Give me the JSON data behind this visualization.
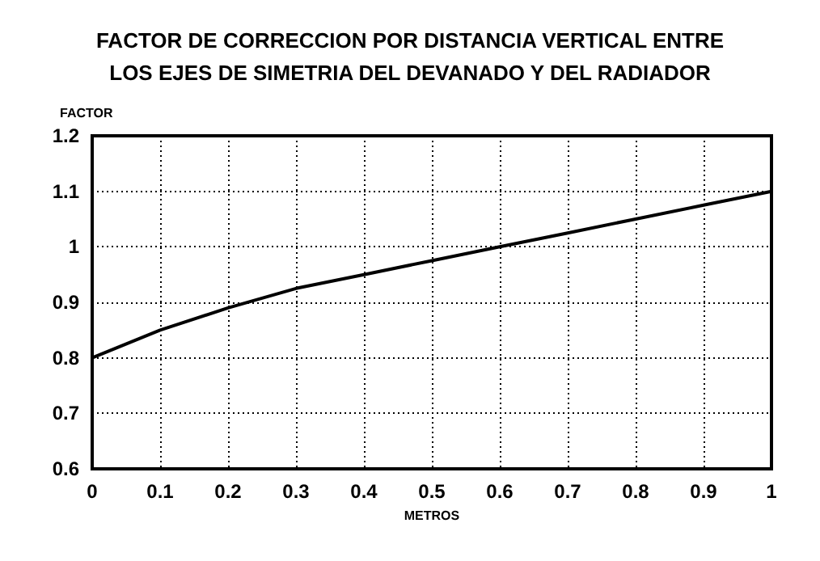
{
  "chart_data": {
    "type": "line",
    "title": "FACTOR DE CORRECCION POR DISTANCIA VERTICAL ENTRE\nLOS EJES DE SIMETRIA DEL DEVANADO Y DEL RADIADOR",
    "xlabel": "METROS",
    "ylabel": "FACTOR",
    "x": [
      0,
      0.1,
      0.2,
      0.3,
      0.4,
      0.5,
      0.6,
      0.7,
      0.8,
      0.9,
      1
    ],
    "series": [
      {
        "color": "#000000",
        "values": [
          0.8,
          0.85,
          0.89,
          0.925,
          0.95,
          0.975,
          1.0,
          1.025,
          1.05,
          1.075,
          1.1
        ]
      }
    ],
    "xlim": [
      0,
      1
    ],
    "xticks": [
      0,
      0.1,
      0.2,
      0.3,
      0.4,
      0.5,
      0.6,
      0.7,
      0.8,
      0.9,
      1
    ],
    "ylim": [
      0.6,
      1.2
    ],
    "yticks": [
      0.6,
      0.7,
      0.8,
      0.9,
      1,
      1.1,
      1.2
    ],
    "grid": true,
    "marker": "none",
    "line_style": "solid"
  }
}
